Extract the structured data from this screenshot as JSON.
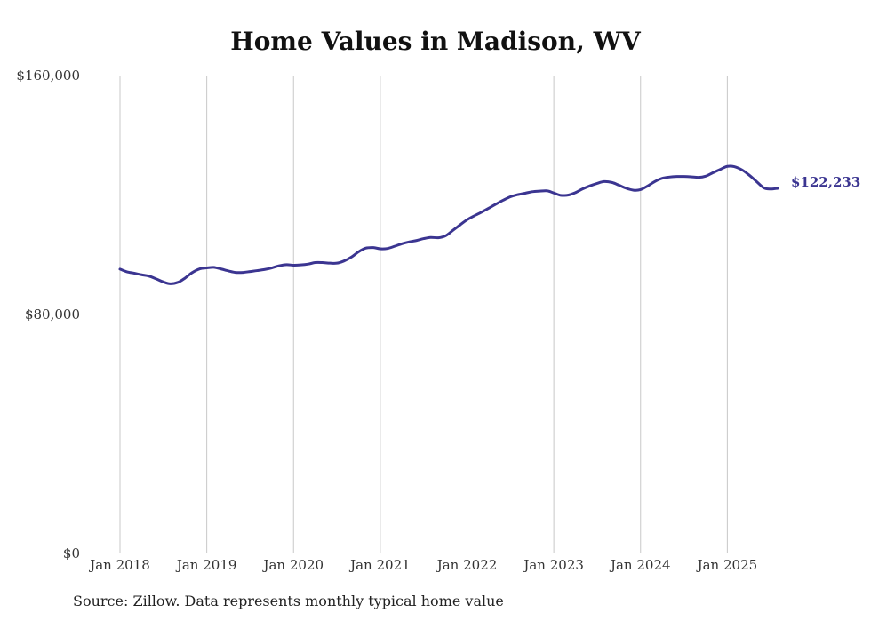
{
  "chart_data": {
    "type": "line",
    "title": "Home Values in Madison, WV",
    "xlabel": "",
    "ylabel": "",
    "ylim": [
      0,
      160000
    ],
    "y_ticks": [
      {
        "value": 0,
        "label": "$0"
      },
      {
        "value": 80000,
        "label": "$80,000"
      },
      {
        "value": 160000,
        "label": "$160,000"
      }
    ],
    "x_ticks": [
      {
        "value": 2018.0,
        "label": "Jan 2018"
      },
      {
        "value": 2019.0,
        "label": "Jan 2019"
      },
      {
        "value": 2020.0,
        "label": "Jan 2020"
      },
      {
        "value": 2021.0,
        "label": "Jan 2021"
      },
      {
        "value": 2022.0,
        "label": "Jan 2022"
      },
      {
        "value": 2023.0,
        "label": "Jan 2023"
      },
      {
        "value": 2024.0,
        "label": "Jan 2024"
      },
      {
        "value": 2025.0,
        "label": "Jan 2025"
      }
    ],
    "xlim": [
      2018.0,
      2025.58
    ],
    "grid": "vertical",
    "series": [
      {
        "name": "Typical home value",
        "color": "#3b3591",
        "end_label": "$122,233",
        "x": [
          2018.0,
          2018.08,
          2018.17,
          2018.25,
          2018.33,
          2018.42,
          2018.5,
          2018.58,
          2018.67,
          2018.75,
          2018.83,
          2018.92,
          2019.0,
          2019.08,
          2019.17,
          2019.25,
          2019.33,
          2019.42,
          2019.5,
          2019.58,
          2019.67,
          2019.75,
          2019.83,
          2019.92,
          2020.0,
          2020.08,
          2020.17,
          2020.25,
          2020.33,
          2020.42,
          2020.5,
          2020.58,
          2020.67,
          2020.75,
          2020.83,
          2020.92,
          2021.0,
          2021.08,
          2021.17,
          2021.25,
          2021.33,
          2021.42,
          2021.5,
          2021.58,
          2021.67,
          2021.75,
          2021.83,
          2021.92,
          2022.0,
          2022.08,
          2022.17,
          2022.25,
          2022.33,
          2022.42,
          2022.5,
          2022.58,
          2022.67,
          2022.75,
          2022.83,
          2022.92,
          2023.0,
          2023.08,
          2023.17,
          2023.25,
          2023.33,
          2023.42,
          2023.5,
          2023.58,
          2023.67,
          2023.75,
          2023.83,
          2023.92,
          2024.0,
          2024.08,
          2024.17,
          2024.25,
          2024.33,
          2024.42,
          2024.5,
          2024.58,
          2024.67,
          2024.75,
          2024.83,
          2024.92,
          2025.0,
          2025.08,
          2025.17,
          2025.25,
          2025.33,
          2025.42,
          2025.5,
          2025.58
        ],
        "values": [
          95200,
          94300,
          93800,
          93300,
          92900,
          91900,
          90900,
          90300,
          90800,
          92200,
          94000,
          95300,
          95600,
          95800,
          95200,
          94600,
          94100,
          94100,
          94400,
          94700,
          95100,
          95600,
          96300,
          96700,
          96500,
          96600,
          96900,
          97400,
          97400,
          97200,
          97200,
          97900,
          99300,
          101000,
          102200,
          102400,
          102000,
          102100,
          102900,
          103700,
          104300,
          104800,
          105400,
          105800,
          105700,
          106300,
          108000,
          110000,
          111700,
          113000,
          114300,
          115600,
          116900,
          118300,
          119400,
          120100,
          120600,
          121100,
          121300,
          121400,
          120700,
          119900,
          120000,
          120800,
          122000,
          123100,
          123900,
          124500,
          124200,
          123300,
          122300,
          121600,
          121800,
          123000,
          124600,
          125600,
          126000,
          126200,
          126200,
          126100,
          125900,
          126300,
          127400,
          128600,
          129600,
          129500,
          128400,
          126700,
          124700,
          122400,
          122000,
          122233
        ]
      }
    ]
  },
  "source": "Source: Zillow. Data represents monthly typical home value"
}
